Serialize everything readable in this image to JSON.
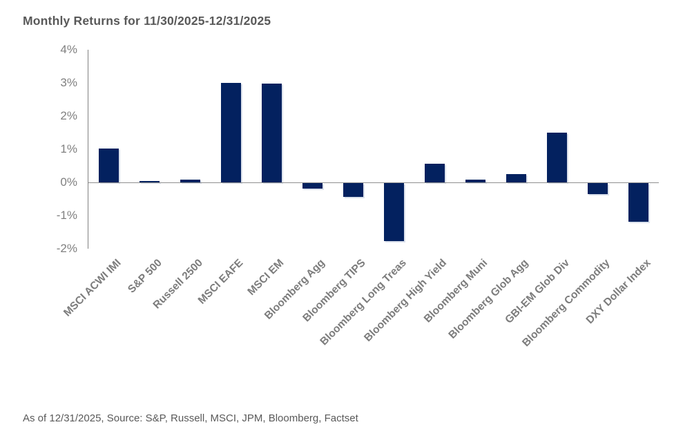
{
  "title": "Monthly Returns for 11/30/2025-12/31/2025",
  "footer": "As of 12/31/2025, Source: S&P, Russell, MSCI, JPM, Bloomberg, Factset",
  "colors": {
    "bar": "#03215f",
    "title_text": "#595959",
    "axis_line": "#808080",
    "tick_label": "#7f7f7f",
    "category_label": "#7c7c7c"
  },
  "chart_data": {
    "type": "bar",
    "title": "Monthly Returns for 11/30/2025-12/31/2025",
    "categories": [
      "MSCI ACWI IMI",
      "S&P 500",
      "Russell 2500",
      "MSCI EAFE",
      "MSCI EM",
      "Bloomberg Agg",
      "Bloomberg TIPS",
      "Bloomberg Long Treas",
      "Bloomberg High Yield",
      "Bloomberg Muni",
      "Bloomberg Glob Agg",
      "GBI-EM Glob Div",
      "Bloomberg Commodity",
      "DXY Dollar Index"
    ],
    "values": [
      1.02,
      0.05,
      0.08,
      3.0,
      2.97,
      -0.17,
      -0.41,
      -1.76,
      0.56,
      0.09,
      0.26,
      1.49,
      -0.33,
      -1.17
    ],
    "unit": "%",
    "xlabel": "",
    "ylabel": "",
    "ylim": [
      -2,
      4
    ],
    "ytick_labels": [
      "4%",
      "3%",
      "2%",
      "1%",
      "0%",
      "-1%",
      "-2%"
    ],
    "ytick_values": [
      4,
      3,
      2,
      1,
      0,
      -1,
      -2
    ],
    "grid": false,
    "legend_position": "none",
    "note": "As of 12/31/2025, Source: S&P, Russell, MSCI, JPM, Bloomberg, Factset"
  }
}
